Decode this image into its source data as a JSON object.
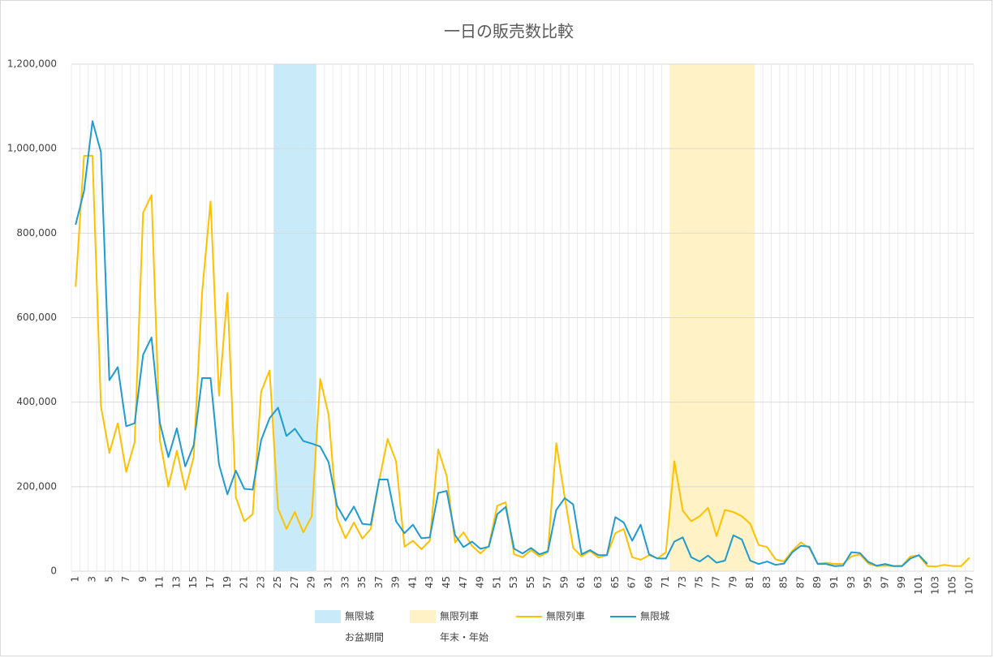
{
  "chart_data": {
    "type": "combo",
    "title": "一日の販売数比較",
    "categories": [
      1,
      null,
      3,
      null,
      5,
      null,
      7,
      null,
      9,
      null,
      11,
      null,
      13,
      null,
      15,
      null,
      17,
      null,
      19,
      null,
      21,
      null,
      23,
      null,
      25,
      null,
      27,
      null,
      29,
      null,
      31,
      null,
      33,
      null,
      35,
      null,
      37,
      null,
      39,
      null,
      41,
      null,
      43,
      null,
      45,
      null,
      47,
      null,
      49,
      null,
      51,
      null,
      53,
      null,
      55,
      null,
      57,
      null,
      59,
      null,
      61,
      null,
      63,
      null,
      65,
      null,
      67,
      null,
      69,
      null,
      71,
      null,
      73,
      null,
      75,
      null,
      77,
      null,
      79,
      null,
      81,
      null,
      83,
      null,
      85,
      null,
      87,
      null,
      89,
      null,
      91,
      null,
      93,
      null,
      95,
      null,
      97,
      null,
      99,
      null,
      101,
      null,
      103,
      null,
      105,
      null,
      107
    ],
    "ylim": [
      0,
      1200000
    ],
    "yticks": [
      0,
      {
        "value": 200000,
        "label": "200,000"
      },
      {
        "value": 400000,
        "label": "400,000"
      },
      {
        "value": 600000,
        "label": "600,000"
      },
      {
        "value": 800000,
        "label": "800,000"
      },
      {
        "value": 1000000,
        "label": "1,000,000"
      },
      {
        "value": 1200000,
        "label": "1,200,000"
      }
    ],
    "grid": true,
    "legend": "bottom",
    "series": [
      {
        "name": "無限城",
        "type": "bar",
        "color": "#c9ebf9",
        "values": [
          null,
          null,
          null,
          null,
          null,
          null,
          null,
          null,
          null,
          null,
          null,
          null,
          null,
          null,
          null,
          null,
          null,
          null,
          null,
          null,
          null,
          null,
          null,
          null,
          1200000,
          1200000,
          1200000,
          1200000,
          1200000,
          null,
          null,
          null,
          null,
          null,
          null,
          null,
          null,
          null,
          null,
          null,
          null,
          null,
          null,
          null,
          null,
          null,
          null,
          null,
          null,
          null,
          null,
          null,
          null,
          null,
          null,
          null,
          null,
          null,
          null,
          null,
          null,
          null,
          null,
          null,
          null,
          null,
          null,
          null,
          null,
          null,
          null,
          null,
          null,
          null,
          null,
          null,
          null,
          null,
          null,
          null,
          null,
          null,
          null,
          null,
          null,
          null,
          null,
          null,
          null,
          null,
          null,
          null,
          null,
          null,
          null,
          null,
          null,
          null,
          null,
          null,
          null,
          null,
          null,
          null,
          null,
          null,
          null
        ]
      },
      {
        "name": "無限列車",
        "type": "bar",
        "color": "#fff2c6",
        "values": [
          null,
          null,
          null,
          null,
          null,
          null,
          null,
          null,
          null,
          null,
          null,
          null,
          null,
          null,
          null,
          null,
          null,
          null,
          null,
          null,
          null,
          null,
          null,
          null,
          null,
          null,
          null,
          null,
          null,
          null,
          null,
          null,
          null,
          null,
          null,
          null,
          null,
          null,
          null,
          null,
          null,
          null,
          null,
          null,
          null,
          null,
          null,
          null,
          null,
          null,
          null,
          null,
          null,
          null,
          null,
          null,
          null,
          null,
          null,
          null,
          null,
          null,
          null,
          null,
          null,
          null,
          null,
          null,
          null,
          null,
          null,
          1200000,
          1200000,
          1200000,
          1200000,
          1200000,
          1200000,
          1200000,
          1200000,
          1200000,
          1200000,
          null,
          null,
          null,
          null,
          null,
          null,
          null,
          null,
          null,
          null,
          null,
          null,
          null,
          null,
          null,
          null,
          null,
          null,
          null,
          null,
          null,
          null,
          null,
          null,
          null,
          null
        ]
      },
      {
        "name": "無限列車",
        "type": "line",
        "color": "#ffc000",
        "values": [
          673000,
          983000,
          983000,
          390000,
          280000,
          350000,
          235000,
          305000,
          848000,
          890000,
          310000,
          200000,
          285000,
          193000,
          270000,
          660000,
          875000,
          415000,
          658000,
          175000,
          118000,
          135000,
          425000,
          475000,
          148000,
          100000,
          140000,
          92000,
          130000,
          455000,
          370000,
          125000,
          78000,
          115000,
          77000,
          100000,
          215000,
          313000,
          260000,
          58000,
          72000,
          52000,
          72000,
          288000,
          225000,
          68000,
          92000,
          60000,
          42000,
          60000,
          155000,
          163000,
          40000,
          33000,
          50000,
          35000,
          45000,
          303000,
          175000,
          55000,
          35000,
          48000,
          32000,
          38000,
          90000,
          100000,
          33000,
          27000,
          38000,
          30000,
          45000,
          260000,
          143000,
          118000,
          130000,
          150000,
          83000,
          145000,
          140000,
          130000,
          112000,
          62000,
          57000,
          28000,
          23000,
          48000,
          68000,
          55000,
          18000,
          20000,
          17000,
          17000,
          35000,
          40000,
          18000,
          12000,
          13000,
          12000,
          13000,
          35000,
          37000,
          12000,
          11000,
          15000,
          12000,
          12000,
          32000
        ]
      },
      {
        "name": "無限城",
        "type": "line",
        "color": "#1e9bd0",
        "values": [
          820000,
          900000,
          1065000,
          992000,
          452000,
          483000,
          343000,
          350000,
          512000,
          553000,
          350000,
          270000,
          338000,
          248000,
          298000,
          457000,
          457000,
          253000,
          182000,
          238000,
          195000,
          193000,
          310000,
          362000,
          387000,
          320000,
          337000,
          308000,
          302000,
          295000,
          258000,
          155000,
          120000,
          153000,
          112000,
          110000,
          217000,
          217000,
          118000,
          90000,
          110000,
          78000,
          80000,
          185000,
          190000,
          85000,
          57000,
          70000,
          53000,
          58000,
          135000,
          152000,
          53000,
          42000,
          55000,
          40000,
          47000,
          145000,
          173000,
          158000,
          40000,
          50000,
          38000,
          38000,
          128000,
          115000,
          72000,
          110000,
          40000,
          30000,
          30000,
          70000,
          80000,
          33000,
          23000,
          37000,
          20000,
          25000,
          85000,
          75000,
          25000,
          17000,
          23000,
          15000,
          18000,
          45000,
          60000,
          58000,
          17000,
          17000,
          12000,
          13000,
          45000,
          43000,
          22000,
          13000,
          17000,
          12000,
          12000,
          30000,
          38000,
          17000,
          null,
          null,
          null,
          null,
          null
        ]
      }
    ],
    "annotations": [
      "お盆期間",
      "年末・年始"
    ]
  }
}
